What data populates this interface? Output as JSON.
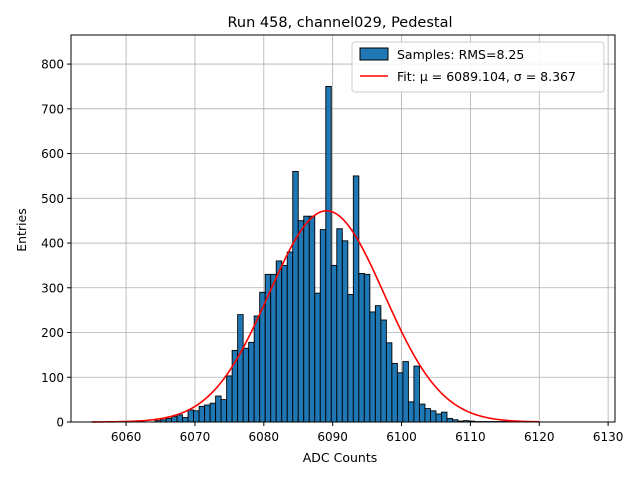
{
  "chart_data": {
    "type": "bar",
    "title": "Run 458, channel029, Pedestal",
    "xlabel": "ADC Counts",
    "ylabel": "Entries",
    "xlim": [
      6052,
      6131
    ],
    "ylim": [
      0,
      865
    ],
    "xticks": [
      6060,
      6070,
      6080,
      6090,
      6100,
      6110,
      6120,
      6130
    ],
    "yticks": [
      0,
      100,
      200,
      300,
      400,
      500,
      600,
      700,
      800
    ],
    "grid": true,
    "legend_position": "top-right",
    "colors": {
      "bars": "#1f77b4",
      "bar_edge": "#000000",
      "fit": "#ff0000",
      "grid": "#b0b0b0"
    },
    "histogram": {
      "name": "Samples: RMS=8.25",
      "bin_width": 0.8,
      "x": [
        6064.2,
        6065.0,
        6065.8,
        6066.6,
        6067.4,
        6068.2,
        6069.0,
        6069.8,
        6070.6,
        6071.4,
        6072.2,
        6073.0,
        6073.8,
        6074.6,
        6075.4,
        6076.2,
        6077.0,
        6077.8,
        6078.6,
        6079.4,
        6080.2,
        6081.0,
        6081.8,
        6082.6,
        6083.4,
        6084.2,
        6085.0,
        6085.8,
        6086.6,
        6087.4,
        6088.2,
        6089.0,
        6089.8,
        6090.6,
        6091.4,
        6092.2,
        6093.0,
        6093.8,
        6094.6,
        6095.4,
        6096.2,
        6097.0,
        6097.8,
        6098.6,
        6099.4,
        6100.2,
        6101.0,
        6101.8,
        6102.6,
        6103.4,
        6104.2,
        6105.0,
        6105.8,
        6106.6,
        6107.4,
        6108.2,
        6109.0,
        6109.8,
        6110.6,
        6111.4,
        6112.2,
        6113.0,
        6113.8,
        6114.6
      ],
      "values": [
        3,
        5,
        8,
        12,
        16,
        10,
        27,
        25,
        35,
        38,
        42,
        58,
        50,
        103,
        160,
        240,
        165,
        178,
        237,
        290,
        330,
        330,
        360,
        350,
        380,
        560,
        450,
        460,
        460,
        288,
        430,
        750,
        350,
        432,
        405,
        285,
        550,
        332,
        330,
        246,
        260,
        228,
        177,
        131,
        110,
        135,
        45,
        125,
        40,
        30,
        25,
        18,
        22,
        8,
        5,
        2,
        3,
        2,
        1,
        1,
        1,
        1,
        1,
        1
      ]
    },
    "fit": {
      "name": "Fit: μ = 6089.104, σ = 8.367",
      "mu": 6089.104,
      "sigma": 8.367,
      "amplitude": 472,
      "x_range": [
        6055,
        6120
      ]
    }
  }
}
